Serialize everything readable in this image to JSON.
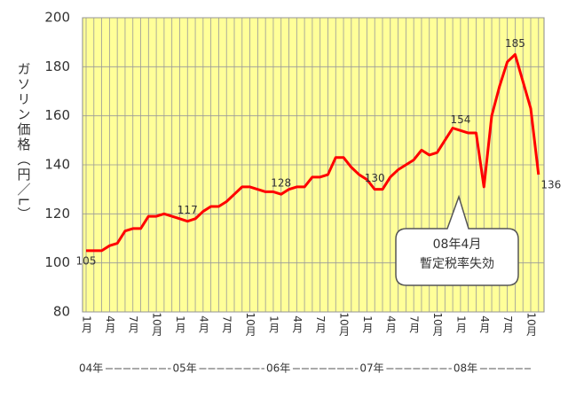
{
  "chart_data": {
    "type": "line",
    "y_label": "ガソリン価格（円／L）",
    "categories": [
      "1月",
      null,
      null,
      "4月",
      null,
      null,
      "7月",
      null,
      null,
      "10月",
      null,
      null,
      "1月",
      null,
      null,
      "4月",
      null,
      null,
      "7月",
      null,
      null,
      "10月",
      null,
      null,
      "1月",
      null,
      null,
      "4月",
      null,
      null,
      "7月",
      null,
      null,
      "10月",
      null,
      null,
      "1月",
      null,
      null,
      "4月",
      null,
      null,
      "7月",
      null,
      null,
      "10月",
      null,
      null,
      "1月",
      null,
      null,
      "4月",
      null,
      null,
      "7月",
      null,
      null,
      "10月",
      null
    ],
    "year_labels": [
      "04年",
      "05年",
      "06年",
      "07年",
      "08年"
    ],
    "series": [
      {
        "color": "#ff0000",
        "values": [
          105,
          105,
          105,
          107,
          108,
          113,
          114,
          114,
          119,
          119,
          120,
          119,
          118,
          117,
          118,
          121,
          123,
          123,
          125,
          128,
          131,
          131,
          130,
          129,
          129,
          128,
          130,
          131,
          131,
          135,
          135,
          136,
          143,
          143,
          139,
          136,
          134,
          130,
          130,
          135,
          138,
          140,
          142,
          146,
          144,
          145,
          150,
          155,
          154,
          153,
          153,
          131,
          160,
          172,
          182,
          185,
          174,
          163,
          136
        ],
        "value_labels": [
          "105",
          null,
          null,
          null,
          null,
          null,
          null,
          null,
          null,
          null,
          null,
          null,
          null,
          "117",
          null,
          null,
          null,
          null,
          null,
          null,
          null,
          null,
          null,
          null,
          null,
          "128",
          null,
          null,
          null,
          null,
          null,
          null,
          null,
          null,
          null,
          null,
          null,
          "130",
          null,
          null,
          null,
          null,
          null,
          null,
          null,
          null,
          null,
          null,
          "154",
          null,
          null,
          null,
          null,
          null,
          null,
          "185",
          null,
          null,
          "136"
        ]
      }
    ],
    "ylim": [
      80,
      200
    ],
    "yticks": [
      80,
      100,
      120,
      140,
      160,
      180,
      200
    ],
    "grid": true,
    "plot_color": "#ffff99",
    "annotation": [
      "08年4月",
      "暫定税率失効"
    ]
  }
}
